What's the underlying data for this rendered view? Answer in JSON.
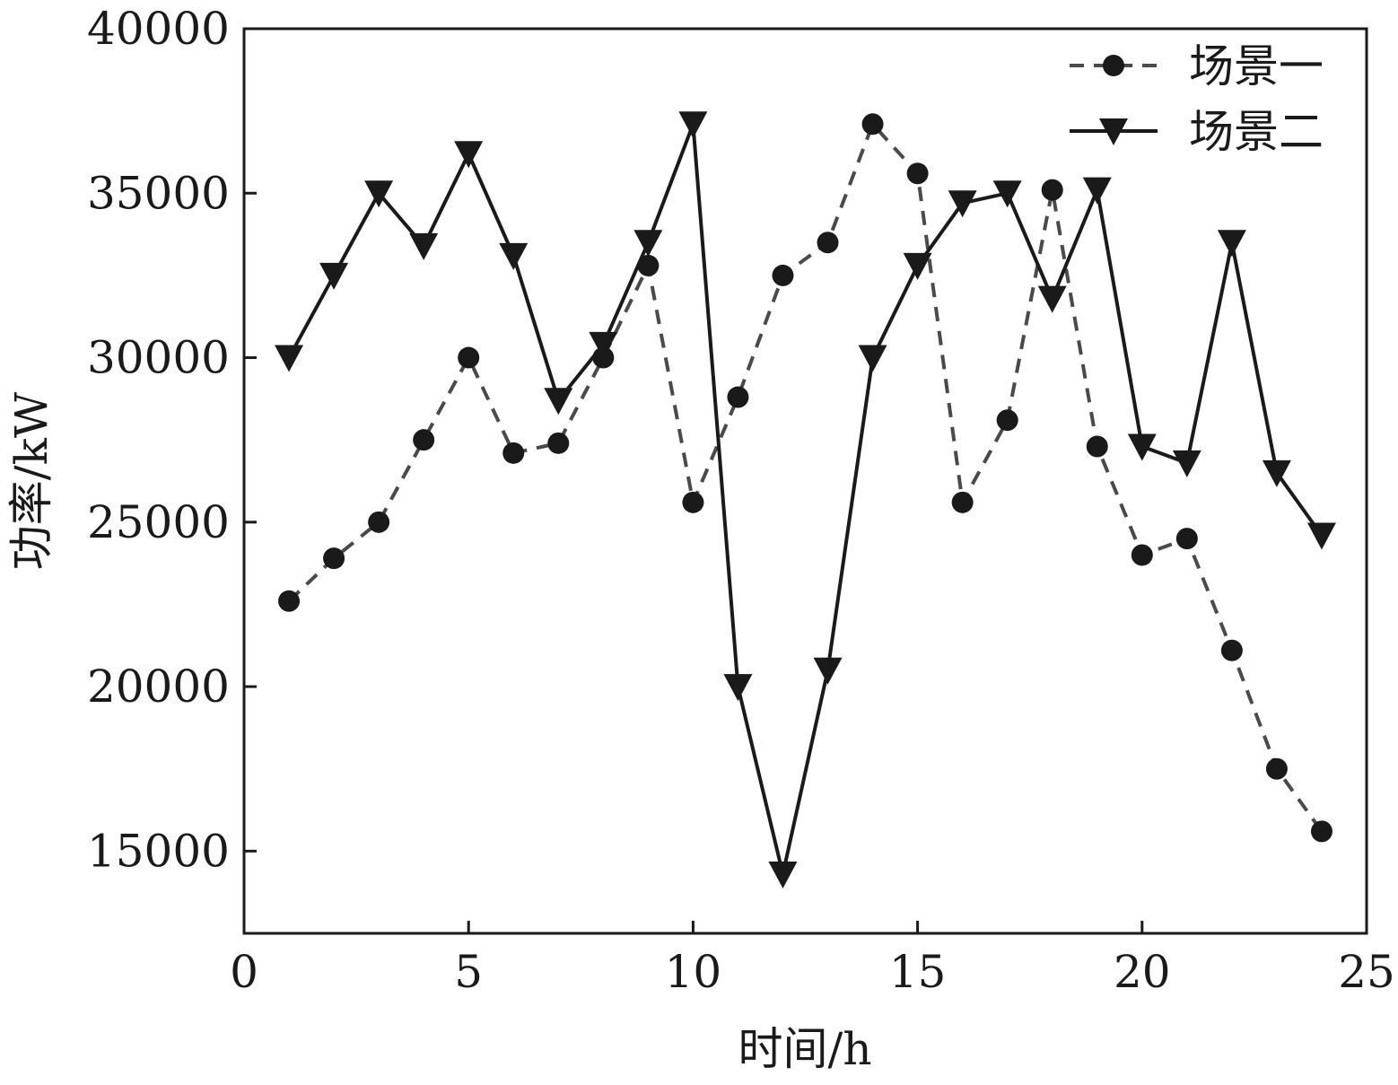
{
  "chart_data": {
    "type": "line",
    "title": "",
    "xlabel": "时间/h",
    "ylabel": "功率/kW",
    "xlim": [
      0,
      25
    ],
    "ylim": [
      12500,
      40000
    ],
    "xticks": [
      0,
      5,
      10,
      15,
      20,
      25
    ],
    "xtick_labels": [
      "0",
      "5",
      "10",
      "15",
      "20",
      "25"
    ],
    "yticks": [
      15000,
      20000,
      25000,
      30000,
      35000,
      40000
    ],
    "ytick_labels": [
      "15000",
      "20000",
      "25000",
      "30000",
      "35000",
      "40000"
    ],
    "grid": false,
    "legend_position": "top-right",
    "x": [
      1,
      2,
      3,
      4,
      5,
      6,
      7,
      8,
      9,
      10,
      11,
      12,
      13,
      14,
      15,
      16,
      17,
      18,
      19,
      20,
      21,
      22,
      23,
      24
    ],
    "series": [
      {
        "name": "场景一",
        "line_style": "dashed",
        "marker": "circle",
        "color": "#4a4a4a",
        "values": [
          22600,
          23900,
          25000,
          27500,
          30000,
          27100,
          27400,
          30000,
          32800,
          25600,
          28800,
          32500,
          33500,
          37100,
          35600,
          25600,
          28100,
          35100,
          27300,
          24000,
          24500,
          21100,
          17500,
          15600
        ]
      },
      {
        "name": "场景二",
        "line_style": "solid",
        "marker": "triangle-down",
        "color": "#1a1a1a",
        "values": [
          30000,
          32500,
          35000,
          33400,
          36200,
          33100,
          28700,
          30400,
          33500,
          37100,
          20000,
          14300,
          20500,
          30000,
          32800,
          34700,
          35000,
          31800,
          35100,
          27300,
          26800,
          33500,
          26500,
          24600
        ]
      }
    ]
  }
}
